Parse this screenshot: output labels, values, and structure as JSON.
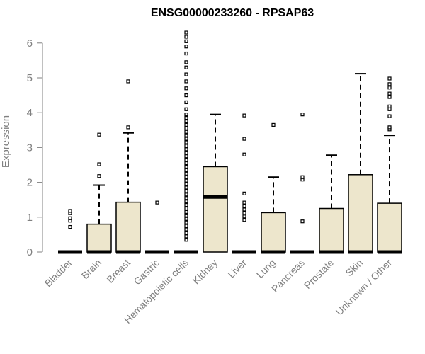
{
  "chart_data": {
    "type": "boxplot",
    "title": "ENSG00000233260 - RPSAP63",
    "xlabel": "",
    "ylabel": "Expression",
    "ylim": [
      0,
      6.3
    ],
    "yticks": [
      0,
      1,
      2,
      3,
      4,
      5,
      6
    ],
    "grid": false,
    "box_color": "#ede6cc",
    "categories": [
      "Bladder",
      "Brain",
      "Breast",
      "Gastric",
      "Hematopoietic cells",
      "Kidney",
      "Liver",
      "Lung",
      "Pancreas",
      "Prostate",
      "Skin",
      "Unknown / Other"
    ],
    "boxes": [
      {
        "q1": 0,
        "median": 0,
        "q3": 0,
        "whisker_low": 0,
        "whisker_high": 0,
        "outliers": [
          0.72,
          0.9,
          0.97,
          1.12,
          1.18
        ]
      },
      {
        "q1": 0,
        "median": 0,
        "q3": 0.8,
        "whisker_low": 0,
        "whisker_high": 1.92,
        "outliers": [
          2.18,
          2.52,
          3.37
        ]
      },
      {
        "q1": 0,
        "median": 0,
        "q3": 1.43,
        "whisker_low": 0,
        "whisker_high": 3.42,
        "outliers": [
          3.58,
          4.9
        ]
      },
      {
        "q1": 0,
        "median": 0,
        "q3": 0,
        "whisker_low": 0,
        "whisker_high": 0,
        "outliers": [
          1.42
        ]
      },
      {
        "q1": 0,
        "median": 0,
        "q3": 0,
        "whisker_low": 0,
        "whisker_high": 0,
        "outliers": [
          0.35,
          0.45,
          0.55,
          0.65,
          0.75,
          0.85,
          0.95,
          1.05,
          1.15,
          1.25,
          1.35,
          1.45,
          1.55,
          1.65,
          1.75,
          1.85,
          1.95,
          2.05,
          2.15,
          2.25,
          2.35,
          2.45,
          2.55,
          2.65,
          2.75,
          2.85,
          2.95,
          3.05,
          3.15,
          3.25,
          3.35,
          3.45,
          3.55,
          3.65,
          3.75,
          3.85,
          3.95,
          4.1,
          4.3,
          4.5,
          4.7,
          4.9,
          5.1,
          5.3,
          5.45,
          5.7,
          5.9,
          6.05,
          6.18,
          6.3
        ]
      },
      {
        "q1": 0,
        "median": 1.58,
        "q3": 2.45,
        "whisker_low": 0,
        "whisker_high": 3.95,
        "outliers": []
      },
      {
        "q1": 0,
        "median": 0,
        "q3": 0,
        "whisker_low": 0,
        "whisker_high": 0,
        "outliers": [
          0.92,
          1.02,
          1.12,
          1.22,
          1.32,
          1.42,
          1.68,
          2.8,
          3.25,
          3.92
        ]
      },
      {
        "q1": 0,
        "median": 0,
        "q3": 1.13,
        "whisker_low": 0,
        "whisker_high": 2.15,
        "outliers": [
          3.65
        ]
      },
      {
        "q1": 0,
        "median": 0,
        "q3": 0,
        "whisker_low": 0,
        "whisker_high": 0,
        "outliers": [
          0.88,
          2.08,
          2.15,
          3.95
        ]
      },
      {
        "q1": 0,
        "median": 0,
        "q3": 1.25,
        "whisker_low": 0,
        "whisker_high": 2.78,
        "outliers": []
      },
      {
        "q1": 0,
        "median": 0,
        "q3": 2.22,
        "whisker_low": 0,
        "whisker_high": 5.12,
        "outliers": []
      },
      {
        "q1": 0,
        "median": 0,
        "q3": 1.4,
        "whisker_low": 0,
        "whisker_high": 3.35,
        "outliers": [
          3.52,
          3.58,
          3.9,
          4.1,
          4.18,
          4.45,
          4.55,
          4.72,
          4.82,
          4.98
        ]
      }
    ]
  }
}
